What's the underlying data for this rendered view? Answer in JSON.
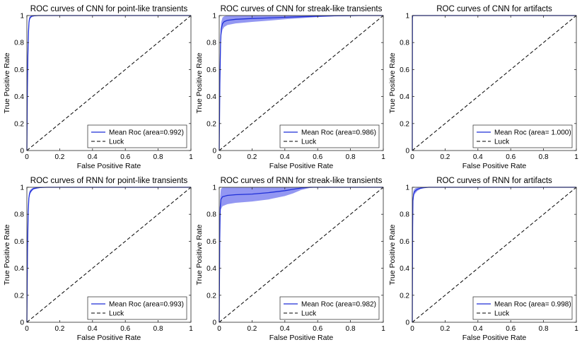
{
  "chart_data": [
    {
      "type": "line",
      "title": "ROC curves of CNN for point-like transients",
      "xlabel": "False Positive Rate",
      "ylabel": "True Positive Rate",
      "xlim": [
        0,
        1
      ],
      "ylim": [
        0,
        1
      ],
      "xticks": [
        "0",
        "0.2",
        "0.4",
        "0.6",
        "0.8",
        "1"
      ],
      "yticks": [
        "0",
        "0.2",
        "0.4",
        "0.6",
        "0.8",
        "1"
      ],
      "legend": [
        "Mean Roc (area=0.992)",
        "Luck"
      ],
      "legend_position": "bottom-right",
      "series": [
        {
          "name": "Mean Roc (area=0.992)",
          "color": "#1f2fd8",
          "x": [
            0,
            0.003,
            0.006,
            0.01,
            0.013,
            0.016,
            0.02,
            0.025,
            0.03,
            0.045,
            0.07,
            0.1,
            1
          ],
          "y": [
            0,
            0.45,
            0.7,
            0.88,
            0.95,
            0.975,
            0.985,
            0.99,
            0.995,
            0.998,
            1,
            1,
            1
          ],
          "band": [
            0.002,
            0.01,
            0.03,
            0.04,
            0.025,
            0.015,
            0.01,
            0.008,
            0.005,
            0.002,
            0,
            0,
            0
          ]
        },
        {
          "name": "Luck",
          "color": "#000000",
          "x": [
            0,
            1
          ],
          "y": [
            0,
            1
          ]
        }
      ]
    },
    {
      "type": "line",
      "title": "ROC curves of CNN for streak-like transients",
      "xlabel": "False Positive Rate",
      "ylabel": "True Positive Rate",
      "xlim": [
        0,
        1
      ],
      "ylim": [
        0,
        1
      ],
      "xticks": [
        "0",
        "0.2",
        "0.4",
        "0.6",
        "0.8",
        "1"
      ],
      "yticks": [
        "0",
        "0.2",
        "0.4",
        "0.6",
        "0.8",
        "1"
      ],
      "legend": [
        "Mean Roc (area=0.986)",
        "Luck"
      ],
      "legend_position": "bottom-right",
      "series": [
        {
          "name": "Mean Roc (area=0.986)",
          "color": "#1f2fd8",
          "x": [
            0,
            0.004,
            0.008,
            0.012,
            0.02,
            0.03,
            0.05,
            0.1,
            0.2,
            0.3,
            0.4,
            0.5,
            0.6,
            0.7,
            0.8,
            0.85,
            1
          ],
          "y": [
            0,
            0.5,
            0.8,
            0.9,
            0.94,
            0.955,
            0.965,
            0.972,
            0.978,
            0.982,
            0.987,
            0.991,
            0.995,
            0.998,
            0.999,
            1,
            1
          ],
          "band": [
            0.01,
            0.06,
            0.06,
            0.05,
            0.045,
            0.04,
            0.035,
            0.03,
            0.025,
            0.02,
            0.015,
            0.01,
            0.006,
            0.004,
            0.002,
            0,
            0
          ]
        },
        {
          "name": "Luck",
          "color": "#000000",
          "x": [
            0,
            1
          ],
          "y": [
            0,
            1
          ]
        }
      ]
    },
    {
      "type": "line",
      "title": "ROC curves of CNN for artifacts",
      "xlabel": "False Positive Rate",
      "ylabel": "True Positive Rate",
      "xlim": [
        0,
        1
      ],
      "ylim": [
        0,
        1
      ],
      "xticks": [
        "0",
        "0.2",
        "0.4",
        "0.6",
        "0.8",
        "1"
      ],
      "yticks": [
        "0",
        "0.2",
        "0.4",
        "0.6",
        "0.8",
        "1"
      ],
      "legend": [
        "Mean Roc (area= 1.000)",
        "Luck"
      ],
      "legend_position": "bottom-right",
      "series": [
        {
          "name": "Mean Roc (area= 1.000)",
          "color": "#1f2fd8",
          "x": [
            0,
            0.001,
            0.002,
            0.004,
            0.006,
            1
          ],
          "y": [
            0,
            0.98,
            0.996,
            1,
            1,
            1
          ],
          "band": [
            0,
            0.01,
            0.003,
            0,
            0,
            0
          ]
        },
        {
          "name": "Luck",
          "color": "#000000",
          "x": [
            0,
            1
          ],
          "y": [
            0,
            1
          ]
        }
      ]
    },
    {
      "type": "line",
      "title": "ROC curves of RNN for point-like transients",
      "xlabel": "False Positive Rate",
      "ylabel": "True Positive Rate",
      "xlim": [
        0,
        1
      ],
      "ylim": [
        0,
        1
      ],
      "xticks": [
        "0",
        "0.2",
        "0.4",
        "0.6",
        "0.8",
        "1"
      ],
      "yticks": [
        "0",
        "0.2",
        "0.4",
        "0.6",
        "0.8",
        "1"
      ],
      "legend": [
        "Mean Roc (area=0.993)",
        "Luck"
      ],
      "legend_position": "bottom-right",
      "series": [
        {
          "name": "Mean Roc (area=0.993)",
          "color": "#1f2fd8",
          "x": [
            0,
            0.004,
            0.008,
            0.012,
            0.016,
            0.02,
            0.03,
            0.04,
            0.06,
            0.08,
            0.12,
            1
          ],
          "y": [
            0,
            0.55,
            0.82,
            0.92,
            0.95,
            0.965,
            0.98,
            0.99,
            0.995,
            0.998,
            1,
            1
          ],
          "band": [
            0.005,
            0.03,
            0.03,
            0.025,
            0.02,
            0.015,
            0.01,
            0.007,
            0.005,
            0.002,
            0,
            0
          ]
        },
        {
          "name": "Luck",
          "color": "#000000",
          "x": [
            0,
            1
          ],
          "y": [
            0,
            1
          ]
        }
      ]
    },
    {
      "type": "line",
      "title": "ROC curves of RNN for streak-like transients",
      "xlabel": "False Positive Rate",
      "ylabel": "True Positive Rate",
      "xlim": [
        0,
        1
      ],
      "ylim": [
        0,
        1
      ],
      "xticks": [
        "0",
        "0.2",
        "0.4",
        "0.6",
        "0.8",
        "1"
      ],
      "yticks": [
        "0",
        "0.2",
        "0.4",
        "0.6",
        "0.8",
        "1"
      ],
      "legend": [
        "Mean Roc (area=0.982)",
        "Luck"
      ],
      "legend_position": "bottom-right",
      "series": [
        {
          "name": "Mean Roc (area=0.982)",
          "color": "#1f2fd8",
          "x": [
            0,
            0.003,
            0.006,
            0.01,
            0.02,
            0.05,
            0.1,
            0.2,
            0.3,
            0.4,
            0.45,
            0.5,
            0.55,
            0.6,
            1
          ],
          "y": [
            0,
            0.6,
            0.85,
            0.91,
            0.93,
            0.94,
            0.945,
            0.95,
            0.96,
            0.975,
            0.985,
            0.995,
            1,
            1,
            1
          ],
          "band": [
            0.02,
            0.08,
            0.08,
            0.075,
            0.07,
            0.065,
            0.06,
            0.055,
            0.05,
            0.04,
            0.03,
            0.015,
            0.005,
            0,
            0
          ]
        },
        {
          "name": "Luck",
          "color": "#000000",
          "x": [
            0,
            1
          ],
          "y": [
            0,
            1
          ]
        }
      ]
    },
    {
      "type": "line",
      "title": "ROC curves of RNN for artifacts",
      "xlabel": "False Positive Rate",
      "ylabel": "True Positive Rate",
      "xlim": [
        0,
        1
      ],
      "ylim": [
        0,
        1
      ],
      "xticks": [
        "0",
        "0.2",
        "0.4",
        "0.6",
        "0.8",
        "1"
      ],
      "yticks": [
        "0",
        "0.2",
        "0.4",
        "0.6",
        "0.8",
        "1"
      ],
      "legend": [
        "Mean Roc (area= 0.998)",
        "Luck"
      ],
      "legend_position": "bottom-right",
      "series": [
        {
          "name": "Mean Roc (area= 0.998)",
          "color": "#1f2fd8",
          "x": [
            0,
            0.002,
            0.004,
            0.008,
            0.012,
            0.02,
            0.03,
            0.05,
            0.07,
            0.1,
            1
          ],
          "y": [
            0,
            0.7,
            0.9,
            0.95,
            0.965,
            0.975,
            0.985,
            0.993,
            0.997,
            1,
            1
          ],
          "band": [
            0.01,
            0.04,
            0.03,
            0.025,
            0.02,
            0.018,
            0.012,
            0.006,
            0.003,
            0,
            0
          ]
        },
        {
          "name": "Luck",
          "color": "#000000",
          "x": [
            0,
            1
          ],
          "y": [
            0,
            1
          ]
        }
      ]
    }
  ]
}
